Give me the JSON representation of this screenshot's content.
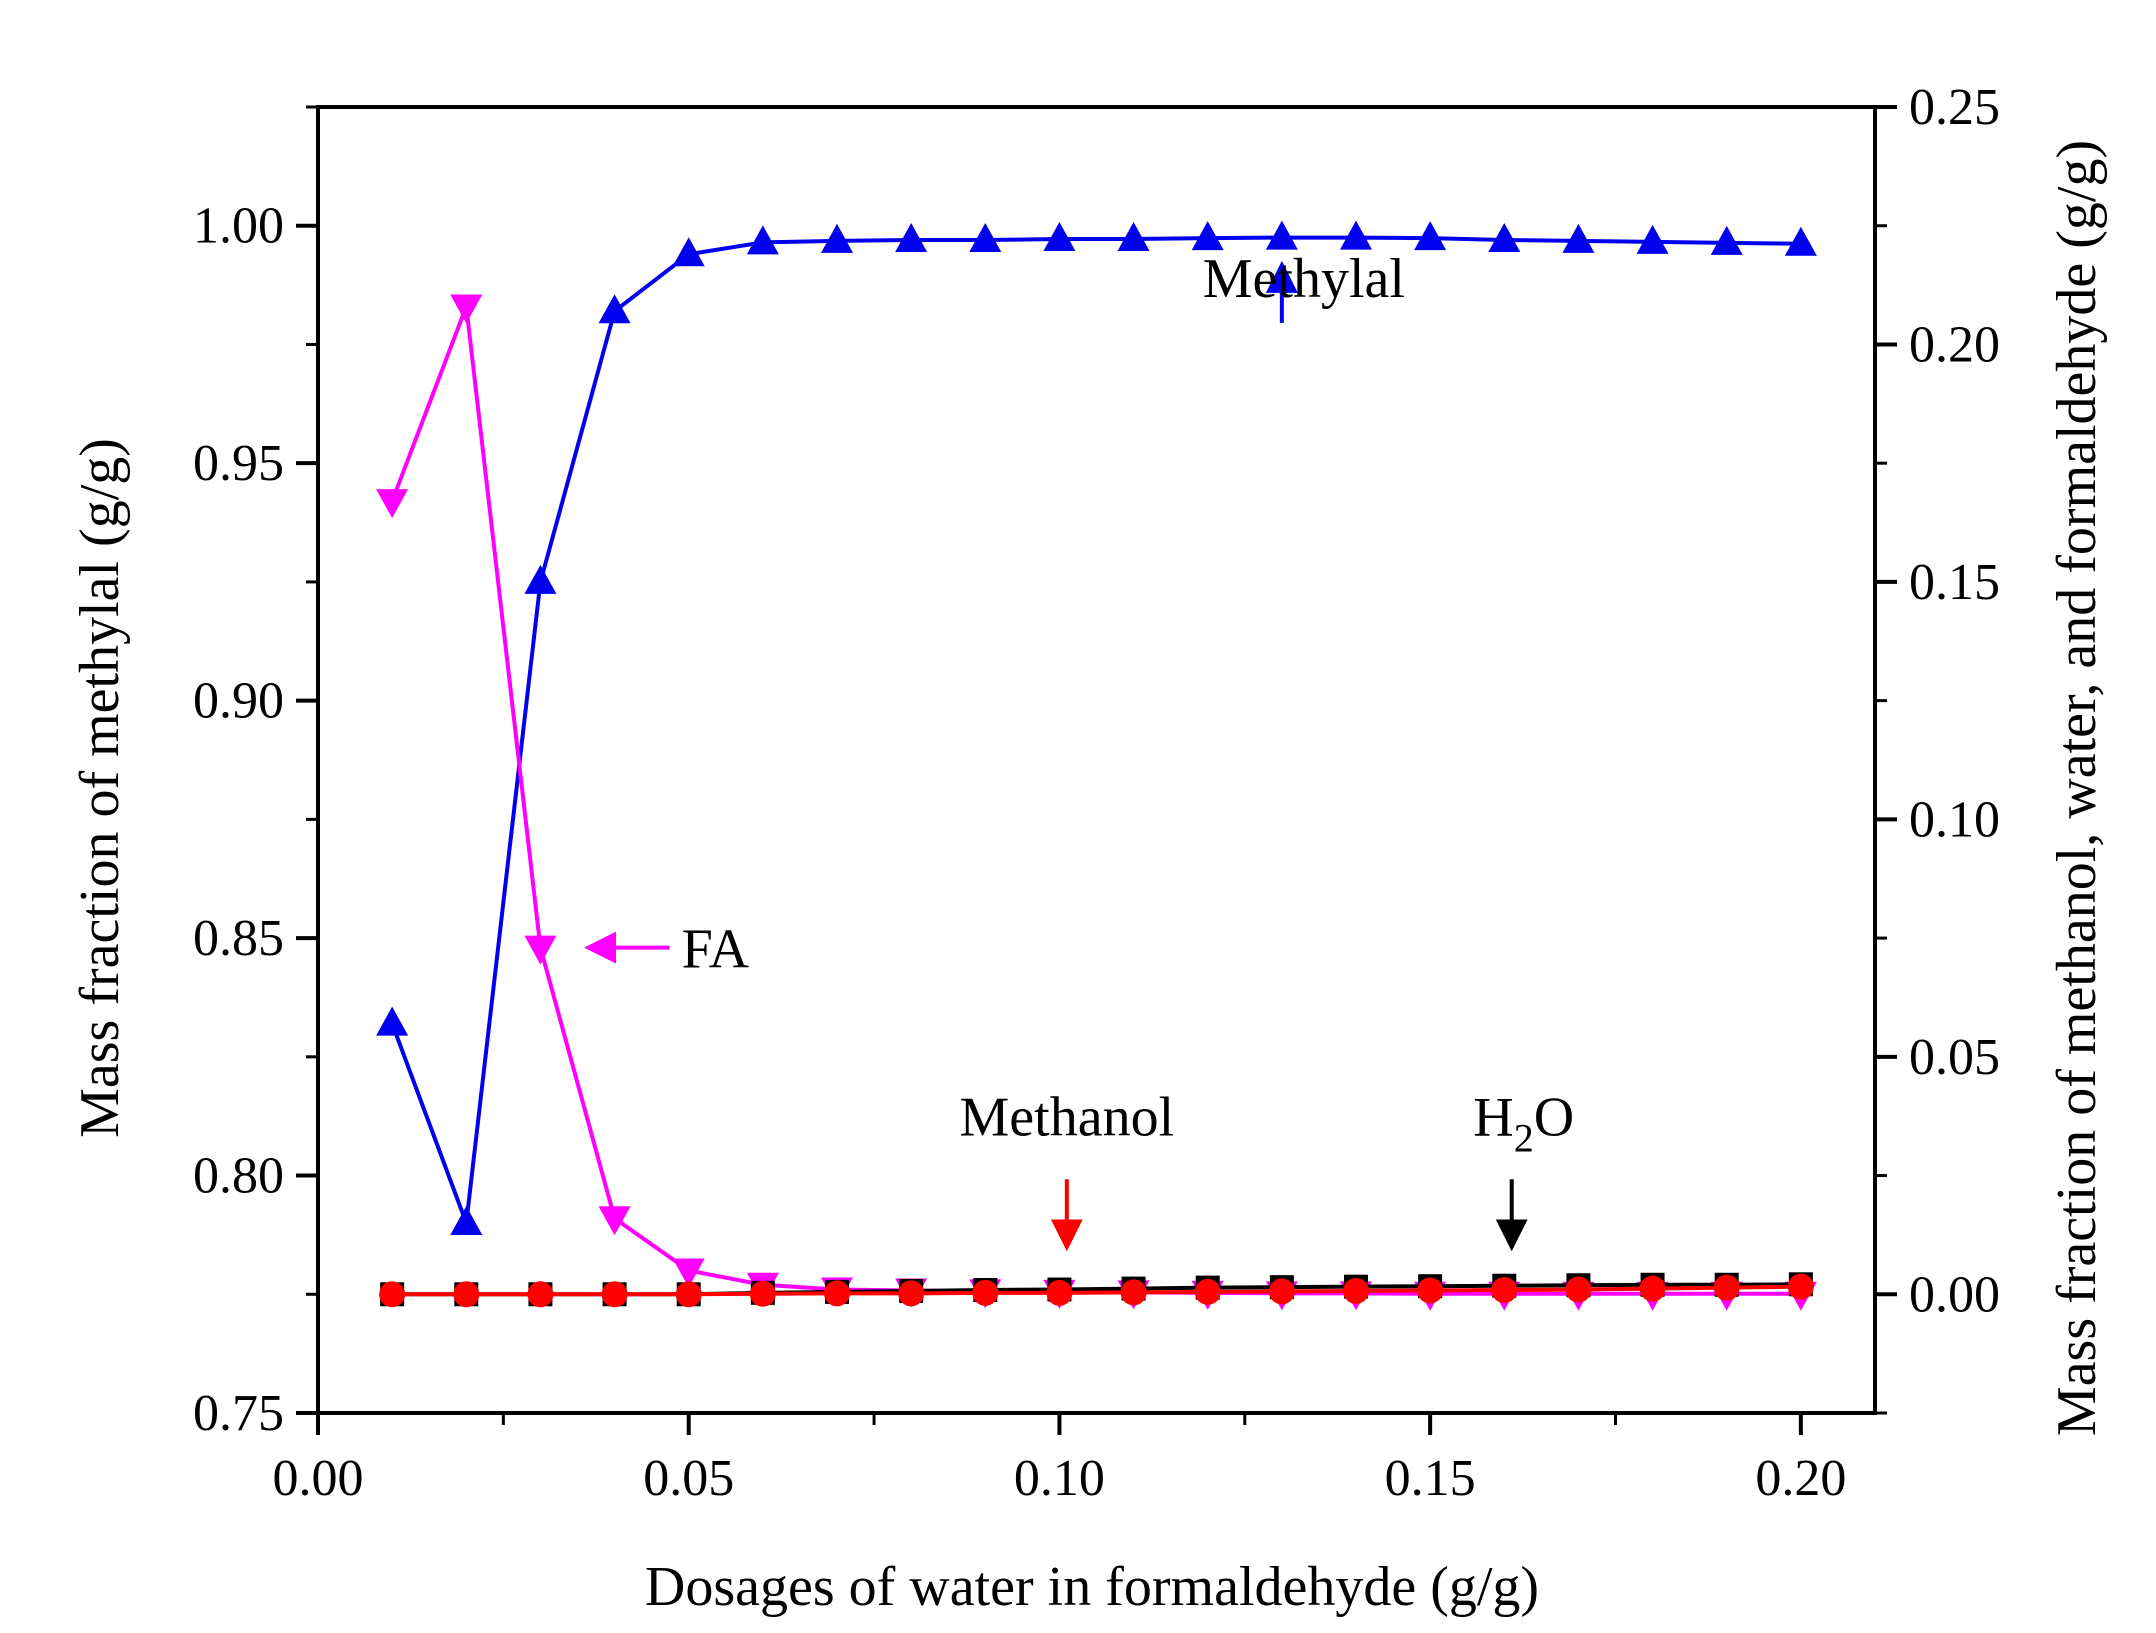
{
  "chart_data": {
    "type": "line",
    "xlabel": "Dosages of water in formaldehyde (g/g)",
    "ylabel_left": "Mass fraction of methylal (g/g)",
    "ylabel_right": "Mass fraction of methanol, water, and formaldehyde (g/g)",
    "xlim": [
      0.0,
      0.21
    ],
    "ylim_left": [
      0.75,
      1.025
    ],
    "ylim_right": [
      -0.025,
      0.25
    ],
    "xticks": [
      "0.00",
      "0.05",
      "0.10",
      "0.15",
      "0.20"
    ],
    "yticks_left": [
      "0.75",
      "0.80",
      "0.85",
      "0.90",
      "0.95",
      "1.00"
    ],
    "yticks_right": [
      "0.00",
      "0.05",
      "0.10",
      "0.15",
      "0.20",
      "0.25"
    ],
    "x": [
      0.01,
      0.02,
      0.03,
      0.04,
      0.05,
      0.06,
      0.07,
      0.08,
      0.09,
      0.1,
      0.11,
      0.12,
      0.13,
      0.14,
      0.15,
      0.16,
      0.17,
      0.18,
      0.19,
      0.2
    ],
    "series": [
      {
        "name": "Methylal",
        "axis": "left",
        "marker": "triangle-up",
        "color": "#0000ee",
        "values": [
          0.832,
          0.79,
          0.925,
          0.982,
          0.994,
          0.9965,
          0.9968,
          0.997,
          0.997,
          0.9972,
          0.9972,
          0.9974,
          0.9975,
          0.9975,
          0.9974,
          0.997,
          0.9968,
          0.9966,
          0.9964,
          0.9962
        ]
      },
      {
        "name": "FA",
        "axis": "right",
        "marker": "triangle-down",
        "color": "#ff00ff",
        "values": [
          0.167,
          0.208,
          0.073,
          0.016,
          0.005,
          0.002,
          0.001,
          0.0008,
          0.0006,
          0.0005,
          0.0004,
          0.0003,
          0.0002,
          0.0002,
          0.0001,
          0.0001,
          0.0001,
          0.0001,
          0.0001,
          0.0001
        ]
      },
      {
        "name": "H2O",
        "axis": "right",
        "marker": "square",
        "color": "#000000",
        "values": [
          0.0,
          0.0,
          0.0,
          0.0,
          0.0,
          0.0003,
          0.0005,
          0.0007,
          0.0009,
          0.001,
          0.0012,
          0.0014,
          0.0015,
          0.0016,
          0.0017,
          0.0018,
          0.0019,
          0.002,
          0.002,
          0.0021
        ]
      },
      {
        "name": "Methanol",
        "axis": "right",
        "marker": "circle",
        "color": "#ff0000",
        "values": [
          0.0,
          0.0,
          0.0,
          0.0,
          0.0,
          0.0001,
          0.0002,
          0.0002,
          0.0003,
          0.0003,
          0.0004,
          0.0005,
          0.0006,
          0.0007,
          0.0008,
          0.0009,
          0.001,
          0.0012,
          0.0014,
          0.0016
        ]
      }
    ],
    "annotations": [
      {
        "text": "Methylal",
        "x": 0.13,
        "y": 0.21,
        "axis": "right",
        "arrow_to": 0.2235,
        "color": "#0000ee"
      },
      {
        "text": "FA",
        "x": 0.045,
        "y": 0.073,
        "axis": "right",
        "arrow_to_x": 0.034,
        "color": "#ff00ff"
      },
      {
        "text": "Methanol",
        "x": 0.101,
        "y": 0.033,
        "axis": "right",
        "arrow_to": 0.004,
        "color": "#ff0000"
      },
      {
        "text": "H",
        "sub": "2",
        "tail": "O",
        "x": 0.161,
        "y": 0.033,
        "axis": "right",
        "arrow_to": 0.004,
        "color": "#000000"
      }
    ]
  }
}
